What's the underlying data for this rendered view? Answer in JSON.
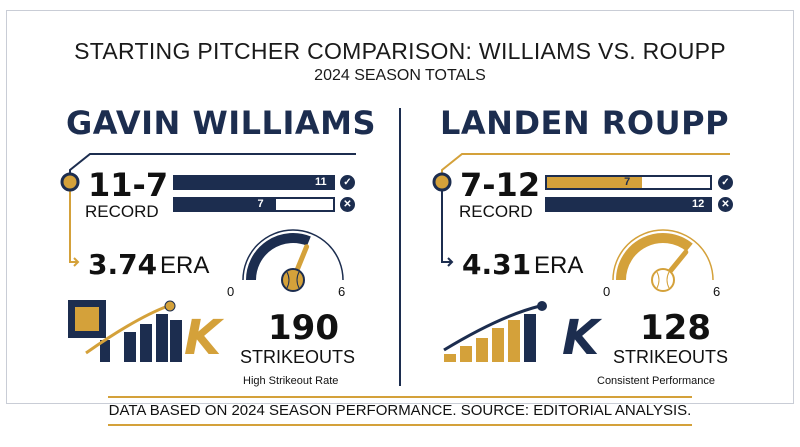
{
  "header": {
    "title": "STARTING PITCHER COMPARISON: WILLIAMS VS. ROUPP",
    "subtitle": "2024 SEASON TOTALS"
  },
  "players": [
    {
      "name": "GAVIN WILLIAMS",
      "record": "11-7",
      "record_label": "RECORD",
      "wins": 11,
      "losses": 7,
      "wins_label": "11",
      "losses_label": "7",
      "era_value": "3.74",
      "era_label": "ERA",
      "era_numeric": 3.74,
      "gauge_min": "0",
      "gauge_max": "6",
      "strikeouts": "190",
      "strikeouts_label": "STRIKEOUTS",
      "note": "High Strikeout Rate",
      "k_letter": "K"
    },
    {
      "name": "LANDEN ROUPP",
      "record": "7-12",
      "record_label": "RECORD",
      "wins": 7,
      "losses": 12,
      "wins_label": "7",
      "losses_label": "12",
      "era_value": "4.31",
      "era_label": "ERA",
      "era_numeric": 4.31,
      "gauge_min": "0",
      "gauge_max": "6",
      "strikeouts": "128",
      "strikeouts_label": "STRIKEOUTS",
      "note": "Consistent Performance",
      "k_letter": "K"
    }
  ],
  "icons": {
    "win": "check-icon",
    "loss": "x-icon"
  },
  "colors": {
    "navy": "#1c2d4f",
    "gold": "#d4a13a"
  },
  "footer": {
    "text": "DATA BASED ON 2024 SEASON PERFORMANCE. SOURCE: EDITORIAL ANALYSIS."
  }
}
